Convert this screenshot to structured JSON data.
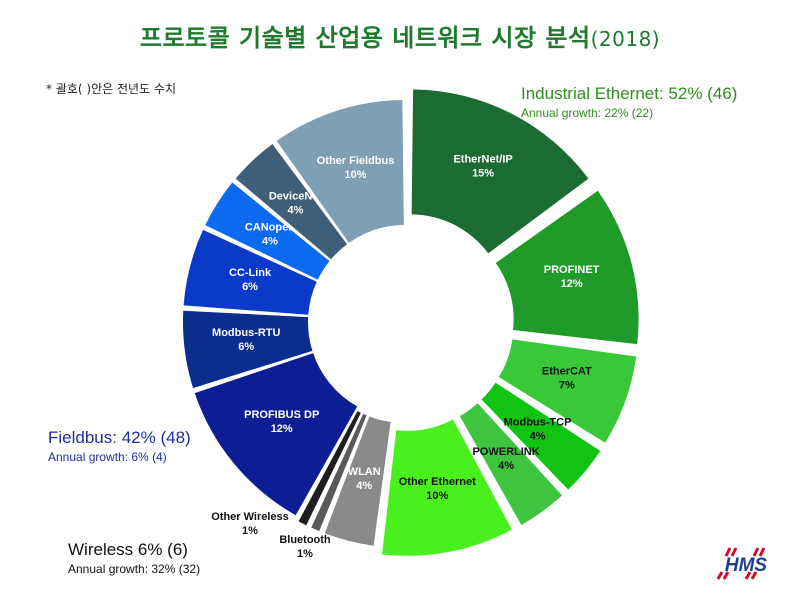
{
  "title": "프로토콜 기술별 산업용 네트워크 시장 분석",
  "title_year": "(2018)",
  "note": "* 괄호( )안은 전년도 수치",
  "logo_text": "HMS",
  "groups": {
    "ethernet": {
      "name": "Industrial Ethernet: 52% (46)",
      "growth": "Annual growth: 22% (22)"
    },
    "fieldbus": {
      "name": "Fieldbus: 42% (48)",
      "growth": "Annual growth: 6% (4)"
    },
    "wireless": {
      "name": "Wireless 6% (6)",
      "growth": "Annual growth: 32% (32)"
    }
  },
  "chart_data": {
    "type": "pie",
    "variant": "donut",
    "title": "프로토콜 기술별 산업용 네트워크 시장 분석 (2018)",
    "slices": [
      {
        "label": "EtherNet/IP",
        "value": 15,
        "group": "ethernet",
        "color": "#1c6b32",
        "label_color": "#ffffff"
      },
      {
        "label": "PROFINET",
        "value": 12,
        "group": "ethernet",
        "color": "#209a28",
        "label_color": "#ffffff"
      },
      {
        "label": "EtherCAT",
        "value": 7,
        "group": "ethernet",
        "color": "#38c838",
        "label_color": "#111111"
      },
      {
        "label": "Modbus-TCP",
        "value": 4,
        "group": "ethernet",
        "color": "#12c412",
        "label_color": "#111111"
      },
      {
        "label": "POWERLINK",
        "value": 4,
        "group": "ethernet",
        "color": "#3ec43e",
        "label_color": "#111111"
      },
      {
        "label": "Other Ethernet",
        "value": 10,
        "group": "ethernet",
        "color": "#4af01e",
        "label_color": "#111111"
      },
      {
        "label": "WLAN",
        "value": 4,
        "group": "wireless",
        "color": "#8a8a8a",
        "label_color": "#ffffff"
      },
      {
        "label": "Bluetooth",
        "value": 1,
        "group": "wireless",
        "color": "#5a5a5a",
        "label_color": "#111111"
      },
      {
        "label": "Other Wireless",
        "value": 1,
        "group": "wireless",
        "color": "#1e1e1e",
        "label_color": "#111111"
      },
      {
        "label": "PROFIBUS DP",
        "value": 12,
        "group": "fieldbus",
        "color": "#0d1e94",
        "label_color": "#ffffff"
      },
      {
        "label": "Modbus-RTU",
        "value": 6,
        "group": "fieldbus",
        "color": "#0b2d8e",
        "label_color": "#ffffff"
      },
      {
        "label": "CC-Link",
        "value": 6,
        "group": "fieldbus",
        "color": "#0b39c8",
        "label_color": "#ffffff"
      },
      {
        "label": "CANopen",
        "value": 4,
        "group": "fieldbus",
        "color": "#0b6af0",
        "label_color": "#ffffff"
      },
      {
        "label": "DeviceNet",
        "value": 4,
        "group": "fieldbus",
        "color": "#3f5f78",
        "label_color": "#ffffff"
      },
      {
        "label": "Other Fieldbus",
        "value": 10,
        "group": "fieldbus",
        "color": "#7e9fb4",
        "label_color": "#ffffff"
      }
    ],
    "unit": "%"
  }
}
